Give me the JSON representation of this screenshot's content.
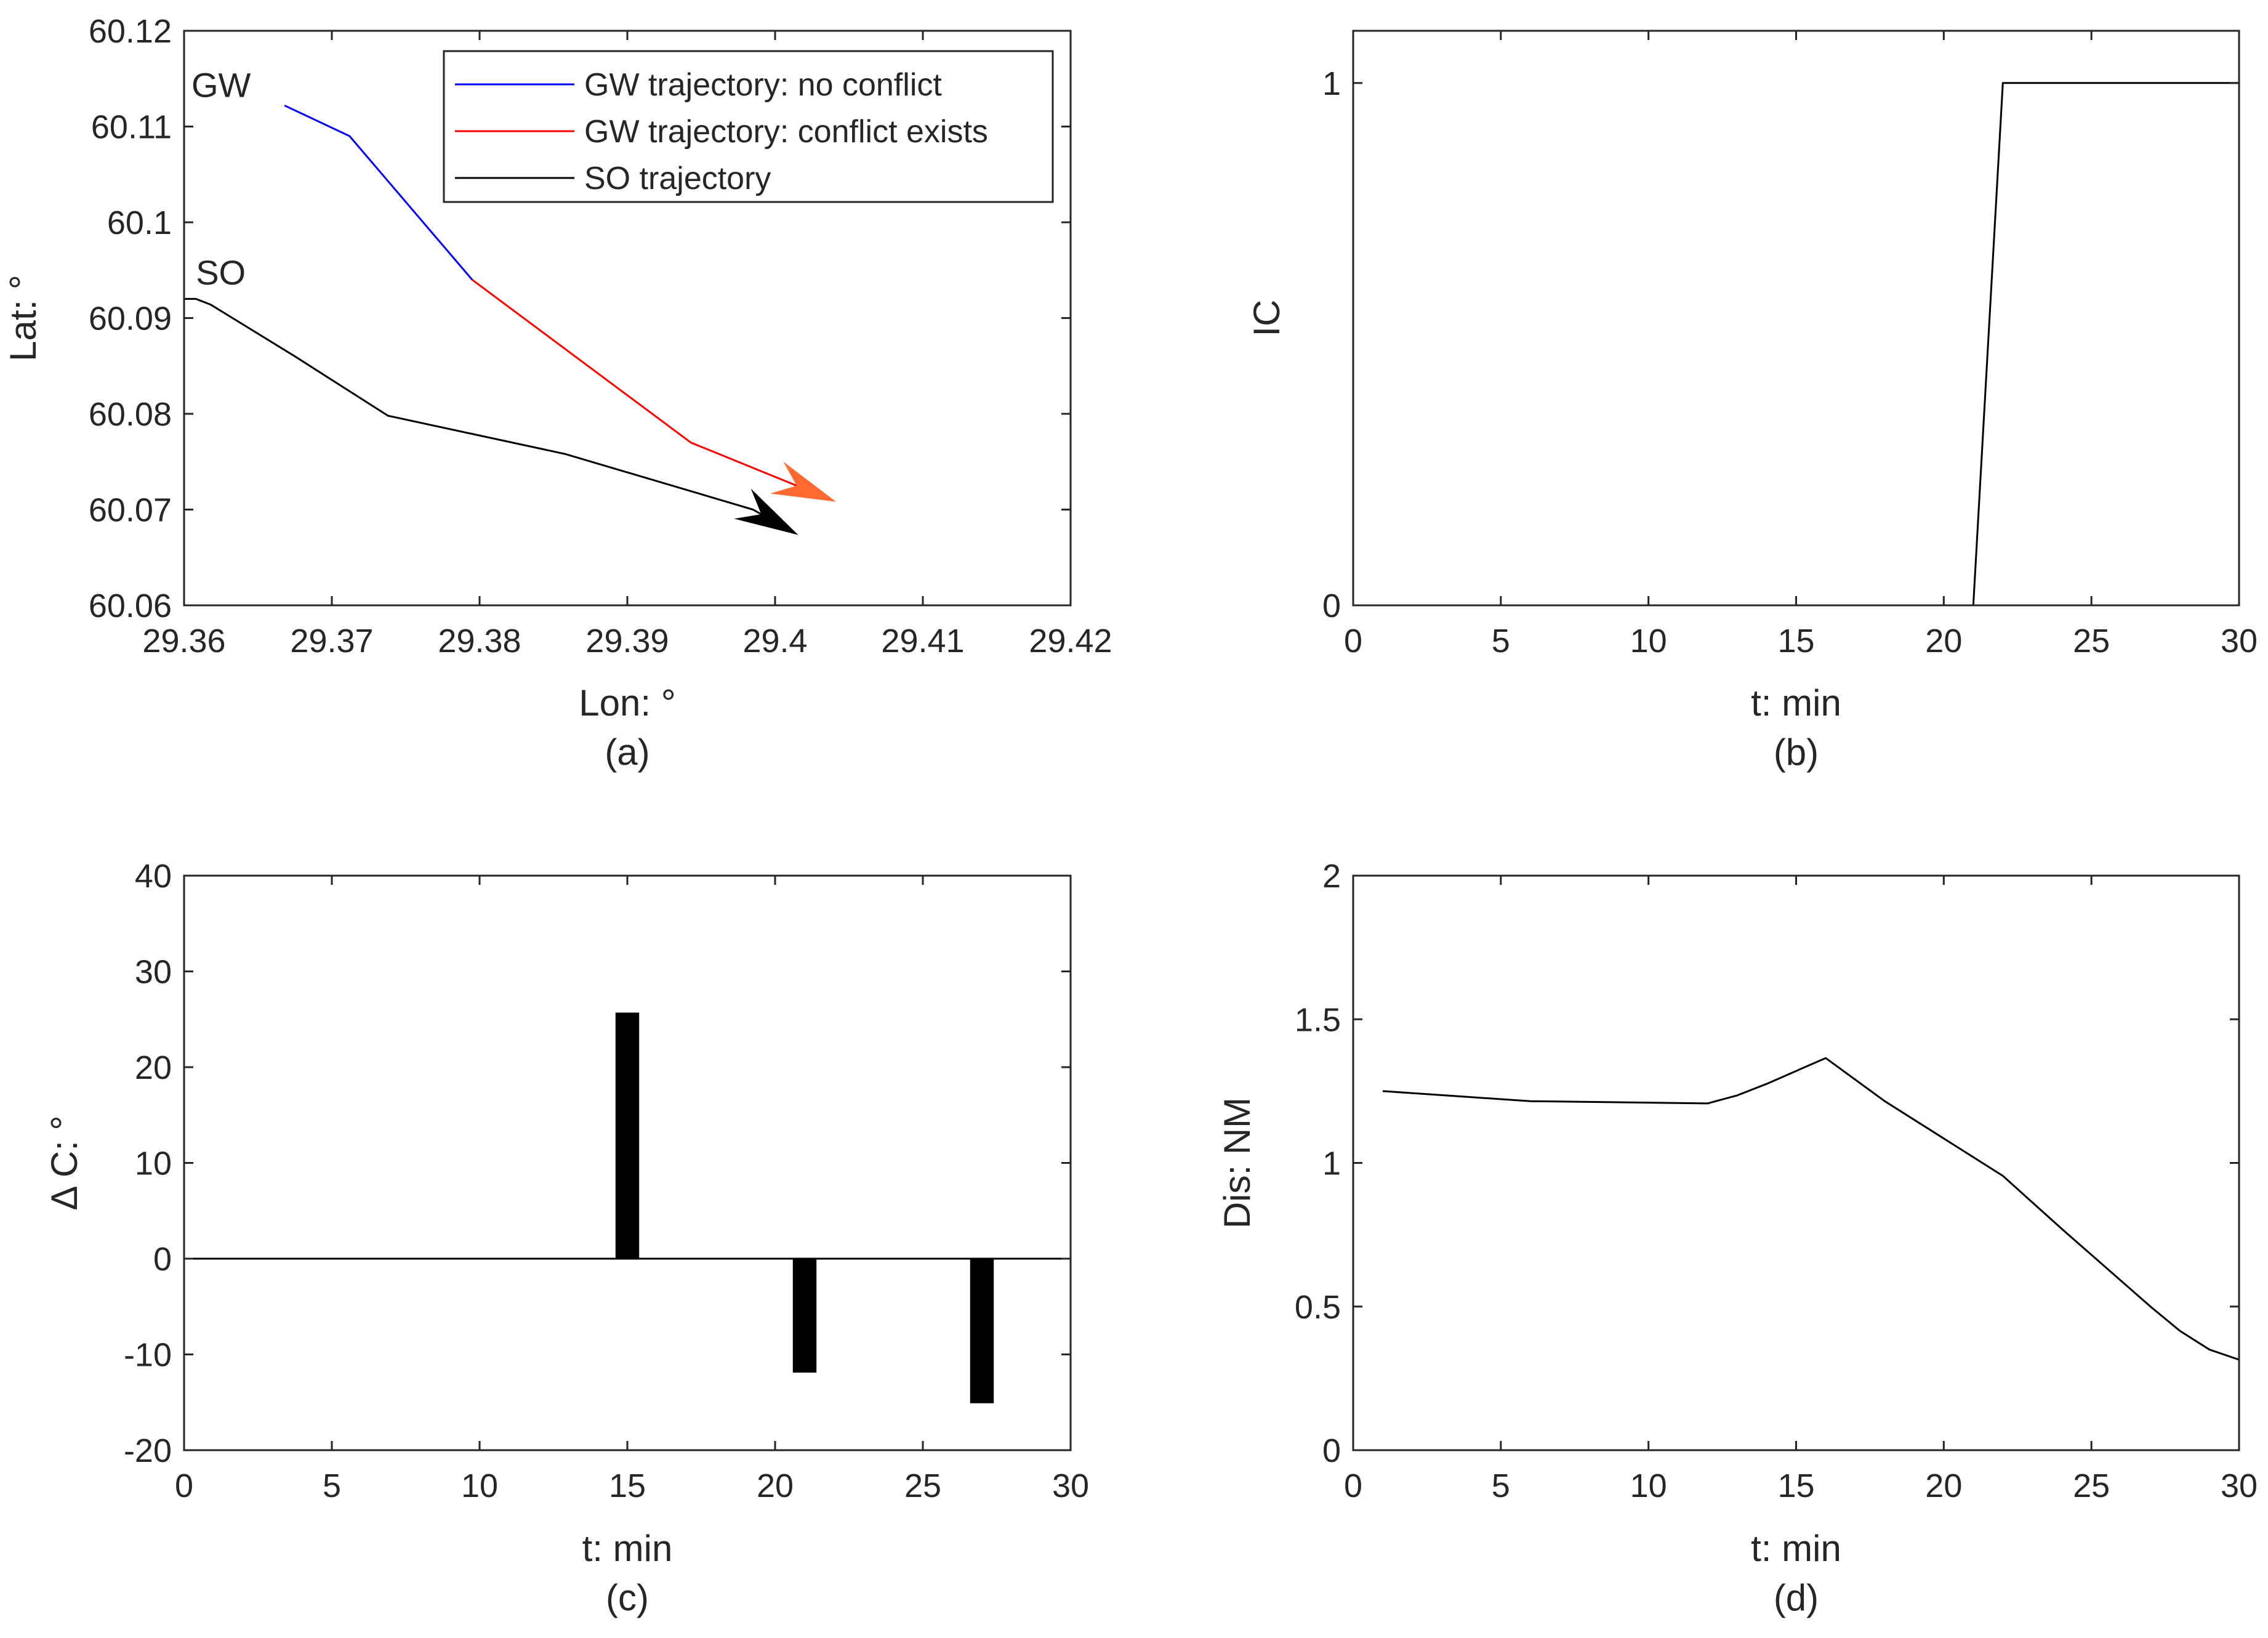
{
  "colors": {
    "axis": "#262626",
    "blue": "#0000ff",
    "red": "#ff0000",
    "black": "#000000",
    "arrow_orange": "#ff6a30"
  },
  "chart_data": [
    {
      "id": "a",
      "type": "line",
      "caption": "(a)",
      "xlabel": "Lon: °",
      "ylabel": "Lat: °",
      "xlim": [
        29.36,
        29.42
      ],
      "ylim": [
        60.06,
        60.12
      ],
      "xticks": [
        29.36,
        29.37,
        29.38,
        29.39,
        29.4,
        29.41,
        29.42
      ],
      "xtick_labels": [
        "29.36",
        "29.37",
        "29.38",
        "29.39",
        "29.4",
        "29.41",
        "29.42"
      ],
      "yticks": [
        60.06,
        60.07,
        60.08,
        60.09,
        60.1,
        60.11,
        60.12
      ],
      "ytick_labels": [
        "60.06",
        "60.07",
        "60.08",
        "60.09",
        "60.1",
        "60.11",
        "60.12"
      ],
      "annotations": [
        {
          "text": "GW",
          "x": 29.3605,
          "y": 60.1131
        },
        {
          "text": "SO",
          "x": 29.3608,
          "y": 60.0935
        }
      ],
      "legend": {
        "position": "top-right",
        "entries": [
          "GW trajectory: no conflict",
          "GW trajectory: conflict exists",
          "SO trajectory"
        ]
      },
      "series": [
        {
          "name": "GW trajectory: no conflict",
          "color": "#0000ff",
          "x": [
            29.3668,
            29.3712,
            29.3795
          ],
          "y": [
            60.1122,
            60.109,
            60.094
          ]
        },
        {
          "name": "GW trajectory: conflict exists",
          "color": "#ff0000",
          "x": [
            29.3795,
            29.3943,
            29.4032
          ],
          "y": [
            60.094,
            60.077,
            60.0714
          ]
        },
        {
          "name": "SO trajectory",
          "color": "#000000",
          "x": [
            29.36,
            29.3608,
            29.3618,
            29.3675,
            29.3738,
            29.3858,
            29.3985,
            29.4007
          ],
          "y": [
            60.092,
            60.092,
            60.0914,
            60.086,
            60.0798,
            60.0758,
            60.07,
            60.0681
          ]
        }
      ]
    },
    {
      "id": "b",
      "type": "line",
      "caption": "(b)",
      "xlabel": "t: min",
      "ylabel": "IC",
      "xlim": [
        0,
        30
      ],
      "ylim": [
        0,
        1.1
      ],
      "xticks": [
        0,
        5,
        10,
        15,
        20,
        25,
        30
      ],
      "xtick_labels": [
        "0",
        "5",
        "10",
        "15",
        "20",
        "25",
        "30"
      ],
      "yticks": [
        0,
        1
      ],
      "ytick_labels": [
        "0",
        "1"
      ],
      "series": [
        {
          "name": "IC",
          "color": "#000000",
          "x": [
            0,
            21,
            22,
            30
          ],
          "y": [
            0,
            0,
            1,
            1
          ]
        }
      ]
    },
    {
      "id": "c",
      "type": "bar",
      "caption": "(c)",
      "xlabel": "t: min",
      "ylabel": "Δ C: °",
      "xlim": [
        0,
        30
      ],
      "ylim": [
        -20,
        40
      ],
      "xticks": [
        0,
        5,
        10,
        15,
        20,
        25,
        30
      ],
      "xtick_labels": [
        "0",
        "5",
        "10",
        "15",
        "20",
        "25",
        "30"
      ],
      "yticks": [
        -20,
        -10,
        0,
        10,
        20,
        30,
        40
      ],
      "ytick_labels": [
        "-20",
        "-10",
        "0",
        "10",
        "20",
        "30",
        "40"
      ],
      "x": [
        15,
        21,
        27
      ],
      "values": [
        25.7,
        -11.9,
        -15.1
      ],
      "bar_width": 0.8,
      "color": "#000000"
    },
    {
      "id": "d",
      "type": "line",
      "caption": "(d)",
      "xlabel": "t: min",
      "ylabel": "Dis: NM",
      "xlim": [
        0,
        30
      ],
      "ylim": [
        0,
        2
      ],
      "xticks": [
        0,
        5,
        10,
        15,
        20,
        25,
        30
      ],
      "xtick_labels": [
        "0",
        "5",
        "10",
        "15",
        "20",
        "25",
        "30"
      ],
      "yticks": [
        0,
        0.5,
        1,
        1.5,
        2
      ],
      "ytick_labels": [
        "0",
        "0.5",
        "1",
        "1.5",
        "2"
      ],
      "series": [
        {
          "name": "Dis",
          "color": "#000000",
          "x": [
            1,
            6,
            12,
            13,
            14,
            15,
            16,
            18,
            20,
            22,
            24,
            25,
            27,
            28,
            29,
            30
          ],
          "y": [
            1.25,
            1.215,
            1.207,
            1.235,
            1.275,
            1.32,
            1.365,
            1.215,
            1.085,
            0.955,
            0.77,
            0.68,
            0.5,
            0.415,
            0.35,
            0.315
          ]
        }
      ]
    }
  ]
}
